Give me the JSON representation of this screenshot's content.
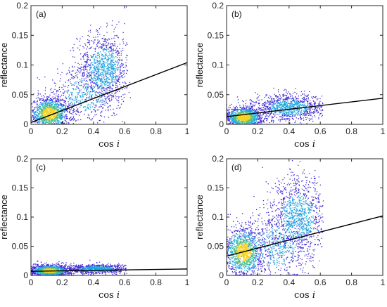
{
  "figure": {
    "background": "#ffffff"
  },
  "colors": {
    "scatter_low": "#3f2bd6",
    "scatter_mid": "#1ea5e0",
    "scatter_high": "#4fc08a",
    "scatter_peak": "#f5d31c",
    "fit_line": "#000000",
    "axes": "#262626"
  },
  "chart_data": [
    {
      "type": "scatter",
      "panel_label": "(a)",
      "xlabel": "cos",
      "xlabel_symbol": "i",
      "ylabel": "reflectance",
      "xlim": [
        0,
        1
      ],
      "ylim": [
        0,
        0.2
      ],
      "xticks": [
        0,
        0.2,
        0.4,
        0.6,
        0.8,
        1
      ],
      "xtick_labels": [
        "0",
        "0.2",
        "0.4",
        "0.6",
        "0.8",
        "1"
      ],
      "yticks": [
        0,
        0.05,
        0.1,
        0.15,
        0.2
      ],
      "ytick_labels": [
        "0",
        "0.05",
        "0.1",
        "0.15",
        "0.2"
      ],
      "fit_line": {
        "x": [
          0,
          1
        ],
        "y": [
          0.003,
          0.104
        ]
      },
      "clusters": [
        {
          "cx": 0.12,
          "cy": 0.018,
          "sx": 0.065,
          "sy": 0.014,
          "n": 1300,
          "xmax": 0.62
        },
        {
          "cx": 0.47,
          "cy": 0.095,
          "sx": 0.085,
          "sy": 0.03,
          "n": 1100,
          "xmax": 0.62
        },
        {
          "cx": 0.35,
          "cy": 0.05,
          "sx": 0.12,
          "sy": 0.025,
          "n": 500,
          "xmax": 0.64
        }
      ],
      "grid": false
    },
    {
      "type": "scatter",
      "panel_label": "(b)",
      "xlabel": "cos",
      "xlabel_symbol": "i",
      "ylabel": "reflectance",
      "xlim": [
        0,
        1
      ],
      "ylim": [
        0,
        0.2
      ],
      "xticks": [
        0,
        0.2,
        0.4,
        0.6,
        0.8,
        1
      ],
      "xtick_labels": [
        "0",
        "0.2",
        "0.4",
        "0.6",
        "0.8",
        "1"
      ],
      "yticks": [
        0,
        0.05,
        0.1,
        0.15,
        0.2
      ],
      "ytick_labels": [
        "0",
        "0.05",
        "0.1",
        "0.15",
        "0.2"
      ],
      "fit_line": {
        "x": [
          0,
          1
        ],
        "y": [
          0.013,
          0.044
        ]
      },
      "clusters": [
        {
          "cx": 0.11,
          "cy": 0.012,
          "sx": 0.06,
          "sy": 0.009,
          "n": 1300,
          "xmax": 0.62
        },
        {
          "cx": 0.4,
          "cy": 0.028,
          "sx": 0.11,
          "sy": 0.011,
          "n": 1100,
          "xmax": 0.62
        }
      ],
      "grid": false
    },
    {
      "type": "scatter",
      "panel_label": "(c)",
      "xlabel": "cos",
      "xlabel_symbol": "i",
      "ylabel": "reflectance",
      "xlim": [
        0,
        1
      ],
      "ylim": [
        0,
        0.2
      ],
      "xticks": [
        0,
        0.2,
        0.4,
        0.6,
        0.8,
        1
      ],
      "xtick_labels": [
        "0",
        "0.2",
        "0.4",
        "0.6",
        "0.8",
        "1"
      ],
      "yticks": [
        0,
        0.05,
        0.1,
        0.15,
        0.2
      ],
      "ytick_labels": [
        "0",
        "0.05",
        "0.1",
        "0.15",
        "0.2"
      ],
      "fit_line": {
        "x": [
          0,
          1
        ],
        "y": [
          0.007,
          0.011
        ]
      },
      "clusters": [
        {
          "cx": 0.12,
          "cy": 0.008,
          "sx": 0.065,
          "sy": 0.005,
          "n": 1300,
          "xmax": 0.62
        },
        {
          "cx": 0.42,
          "cy": 0.011,
          "sx": 0.1,
          "sy": 0.004,
          "n": 900,
          "xmax": 0.62
        }
      ],
      "grid": false
    },
    {
      "type": "scatter",
      "panel_label": "(d)",
      "xlabel": "cos",
      "xlabel_symbol": "i",
      "ylabel": "reflectance",
      "xlim": [
        0,
        1
      ],
      "ylim": [
        0,
        0.2
      ],
      "xticks": [
        0,
        0.2,
        0.4,
        0.6,
        0.8,
        1
      ],
      "xtick_labels": [
        "0",
        "0.2",
        "0.4",
        "0.6",
        "0.8",
        "1"
      ],
      "yticks": [
        0,
        0.05,
        0.1,
        0.15,
        0.2
      ],
      "ytick_labels": [
        "0",
        "0.05",
        "0.1",
        "0.15",
        "0.2"
      ],
      "fit_line": {
        "x": [
          0,
          1
        ],
        "y": [
          0.033,
          0.102
        ]
      },
      "clusters": [
        {
          "cx": 0.11,
          "cy": 0.04,
          "sx": 0.065,
          "sy": 0.022,
          "n": 1300,
          "xmax": 0.62
        },
        {
          "cx": 0.46,
          "cy": 0.1,
          "sx": 0.09,
          "sy": 0.035,
          "n": 1100,
          "xmax": 0.62
        },
        {
          "cx": 0.32,
          "cy": 0.05,
          "sx": 0.12,
          "sy": 0.03,
          "n": 600,
          "xmax": 0.64
        }
      ],
      "grid": false
    }
  ]
}
